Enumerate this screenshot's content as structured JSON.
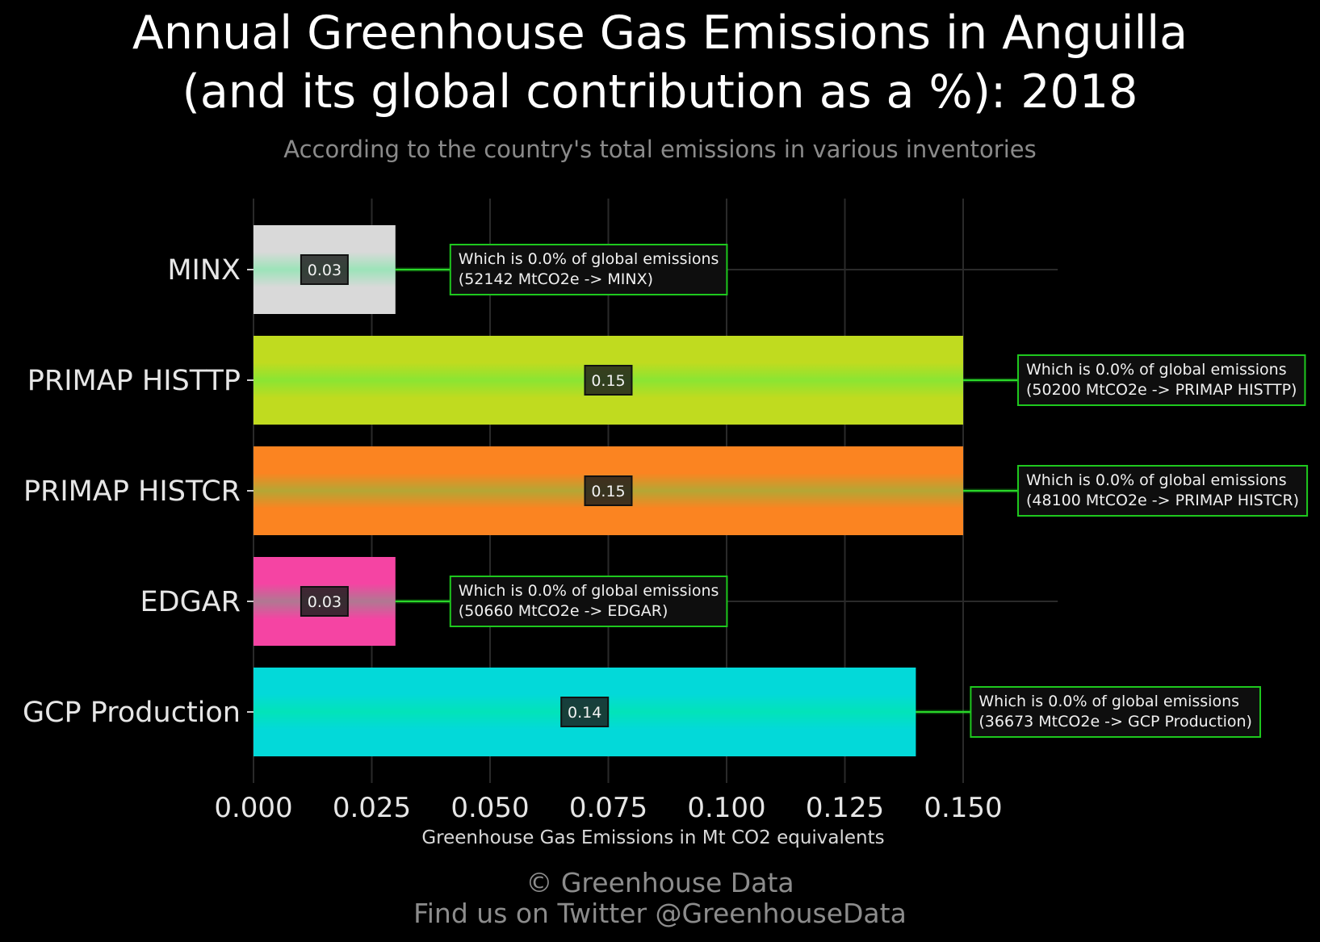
{
  "title_line1": "Annual Greenhouse Gas Emissions in Anguilla",
  "title_line2": "(and its global contribution as a %): 2018",
  "subtitle": "According to the country's total emissions in various inventories",
  "footer_line1": "© Greenhouse Data",
  "footer_line2": "Find us on Twitter @GreenhouseData",
  "chart_data": {
    "type": "bar",
    "orientation": "horizontal",
    "xlabel": "Greenhouse Gas Emissions in Mt CO2 equivalents",
    "xlim": [
      0,
      0.17
    ],
    "xticks": [
      "0.000",
      "0.025",
      "0.050",
      "0.075",
      "0.100",
      "0.125",
      "0.150"
    ],
    "grid": true,
    "categories": [
      "MINX",
      "PRIMAP HISTTP",
      "PRIMAP HISTCR",
      "EDGAR",
      "GCP Production"
    ],
    "values": [
      0.03,
      0.15,
      0.15,
      0.03,
      0.14
    ],
    "value_labels": [
      "0.03",
      "0.15",
      "0.15",
      "0.03",
      "0.14"
    ],
    "bar_colors": [
      "#d9d9d9",
      "#c0db1f",
      "#fb8421",
      "#f544a3",
      "#03d9d9"
    ],
    "annotations": [
      {
        "line1": "Which is 0.0% of global emissions",
        "line2": "(52142 MtCO2e -> MINX)"
      },
      {
        "line1": "Which is 0.0% of global emissions",
        "line2": "(50200 MtCO2e -> PRIMAP HISTTP)"
      },
      {
        "line1": "Which is 0.0% of global emissions",
        "line2": "(48100 MtCO2e -> PRIMAP HISTCR)"
      },
      {
        "line1": "Which is 0.0% of global emissions",
        "line2": "(50660 MtCO2e -> EDGAR)"
      },
      {
        "line1": "Which is 0.0% of global emissions",
        "line2": "(36673 MtCO2e -> GCP Production)"
      }
    ],
    "annotation_border_color": "#1ec81e"
  }
}
